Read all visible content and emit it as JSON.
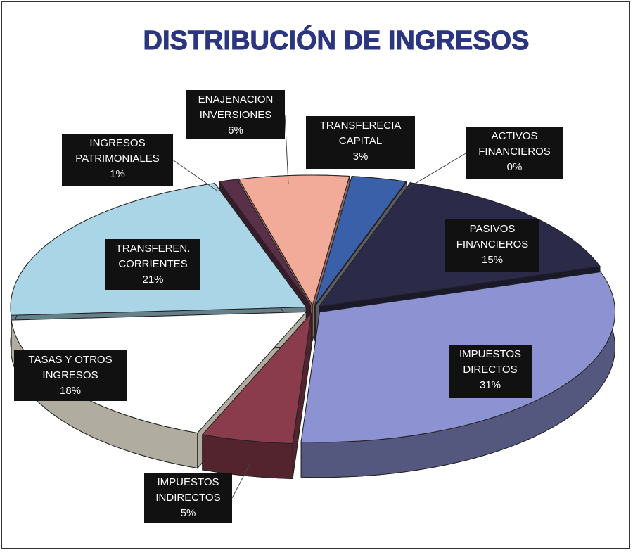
{
  "chart_data": {
    "type": "pie",
    "title": "DISTRIBUCIÓN DE INGRESOS",
    "categories": [
      [
        "ACTIVOS",
        "FINANCIEROS"
      ],
      [
        "PASIVOS",
        "FINANCIEROS"
      ],
      [
        "IMPUESTOS",
        "DIRECTOS"
      ],
      [
        "IMPUESTOS",
        "INDIRECTOS"
      ],
      [
        "TASAS Y OTROS",
        "INGRESOS"
      ],
      [
        "TRANSFEREN.",
        "CORRIENTES"
      ],
      [
        "INGRESOS",
        "PATRIMONIALES"
      ],
      [
        "ENAJENACION",
        "INVERSIONES"
      ],
      [
        "TRANSFERECIA",
        "CAPITAL"
      ]
    ],
    "values": [
      0,
      15,
      31,
      5,
      18,
      21,
      1,
      6,
      3
    ],
    "value_labels": [
      "0%",
      "15%",
      "31%",
      "5%",
      "18%",
      "21%",
      "1%",
      "6%",
      "3%"
    ],
    "colors": [
      "#9a9aa8",
      "#2b2a48",
      "#8d92d2",
      "#8a3c4c",
      "#ffffff",
      "#aad5e6",
      "#5a2f48",
      "#f3ab99",
      "#3a60aa"
    ]
  }
}
